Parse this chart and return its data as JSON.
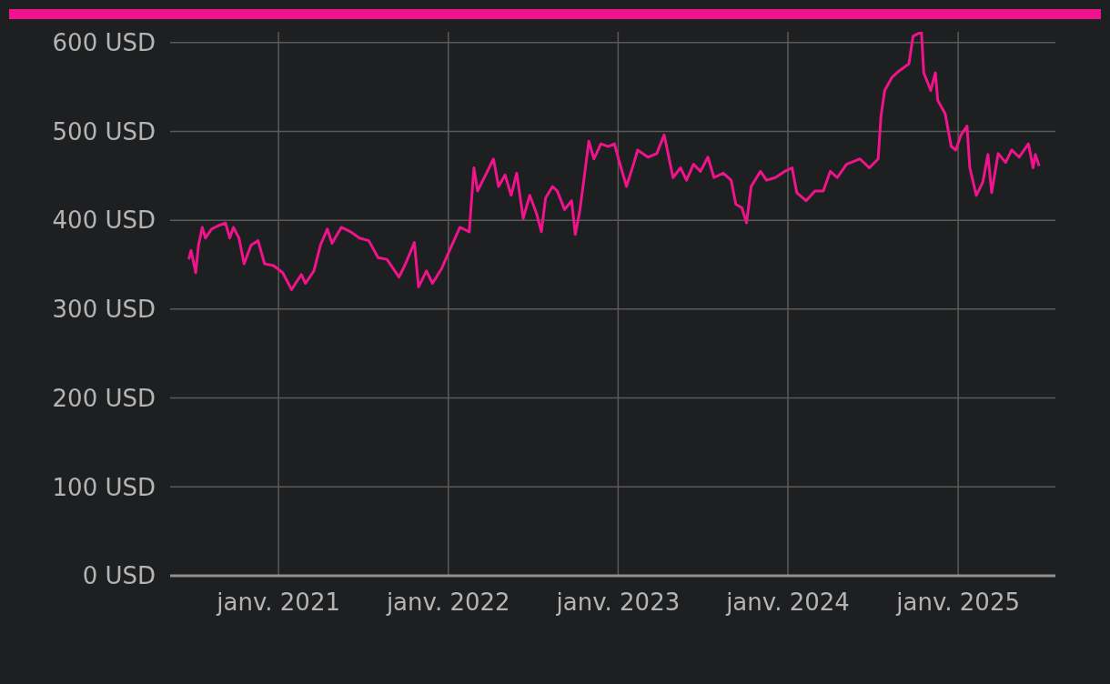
{
  "chart_data": {
    "type": "line",
    "x": [
      "2020-06-22",
      "2020-06-27",
      "2020-07-07",
      "2020-07-13",
      "2020-07-21",
      "2020-07-28",
      "2020-08-10",
      "2020-08-25",
      "2020-09-09",
      "2020-09-18",
      "2020-09-26",
      "2020-10-08",
      "2020-10-19",
      "2020-11-03",
      "2020-11-18",
      "2020-12-02",
      "2020-12-21",
      "2021-01-10",
      "2021-01-29",
      "2021-02-19",
      "2021-02-28",
      "2021-03-18",
      "2021-04-01",
      "2021-04-16",
      "2021-04-26",
      "2021-05-16",
      "2021-06-05",
      "2021-06-24",
      "2021-07-14",
      "2021-08-03",
      "2021-08-22",
      "2021-09-17",
      "2021-10-01",
      "2021-10-20",
      "2021-10-29",
      "2021-11-15",
      "2021-11-28",
      "2021-12-18",
      "2022-01-07",
      "2022-01-26",
      "2022-02-15",
      "2022-02-25",
      "2022-03-05",
      "2022-03-24",
      "2022-04-08",
      "2022-04-19",
      "2022-05-03",
      "2022-05-16",
      "2022-05-28",
      "2022-06-11",
      "2022-06-25",
      "2022-07-10",
      "2022-07-20",
      "2022-07-29",
      "2022-08-13",
      "2022-08-23",
      "2022-09-08",
      "2022-09-23",
      "2022-10-01",
      "2022-10-11",
      "2022-10-20",
      "2022-10-30",
      "2022-11-10",
      "2022-11-25",
      "2022-12-11",
      "2022-12-24",
      "2023-01-04",
      "2023-01-19",
      "2023-02-03",
      "2023-02-12",
      "2023-03-06",
      "2023-03-25",
      "2023-04-10",
      "2023-04-16",
      "2023-04-29",
      "2023-05-15",
      "2023-05-28",
      "2023-06-12",
      "2023-06-27",
      "2023-07-13",
      "2023-07-26",
      "2023-08-15",
      "2023-09-01",
      "2023-09-11",
      "2023-09-24",
      "2023-10-04",
      "2023-10-14",
      "2023-11-03",
      "2023-11-16",
      "2023-12-05",
      "2023-12-25",
      "2024-01-10",
      "2024-01-20",
      "2024-02-09",
      "2024-02-28",
      "2024-03-17",
      "2024-04-01",
      "2024-04-16",
      "2024-05-06",
      "2024-06-04",
      "2024-06-24",
      "2024-07-13",
      "2024-07-19",
      "2024-07-27",
      "2024-08-12",
      "2024-08-27",
      "2024-09-17",
      "2024-09-26",
      "2024-10-14",
      "2024-10-19",
      "2024-11-03",
      "2024-11-13",
      "2024-11-18",
      "2024-12-04",
      "2024-12-17",
      "2024-12-27",
      "2025-01-07",
      "2025-01-20",
      "2025-01-26",
      "2025-02-09",
      "2025-02-23",
      "2025-03-06",
      "2025-03-14",
      "2025-03-28",
      "2025-04-13",
      "2025-04-26",
      "2025-05-12",
      "2025-06-01",
      "2025-06-11",
      "2025-06-16",
      "2025-06-24"
    ],
    "series": [
      {
        "color": "#f0148c",
        "values": [
          356,
          366,
          341,
          372,
          392,
          380,
          390,
          394,
          397,
          380,
          392,
          380,
          351,
          372,
          377,
          351,
          349,
          341,
          322,
          339,
          329,
          343,
          372,
          390,
          374,
          392,
          387,
          380,
          377,
          358,
          356,
          336,
          351,
          375,
          325,
          343,
          329,
          346,
          370,
          392,
          387,
          459,
          433,
          453,
          469,
          438,
          451,
          428,
          453,
          402,
          428,
          407,
          387,
          425,
          438,
          433,
          412,
          422,
          384,
          412,
          448,
          489,
          469,
          486,
          483,
          486,
          465,
          438,
          463,
          479,
          471,
          475,
          496,
          481,
          448,
          459,
          445,
          463,
          455,
          471,
          448,
          453,
          445,
          418,
          414,
          397,
          438,
          455,
          445,
          448,
          455,
          459,
          431,
          422,
          433,
          433,
          455,
          448,
          463,
          469,
          459,
          469,
          517,
          546,
          561,
          568,
          576,
          607,
          612,
          566,
          546,
          566,
          535,
          520,
          483,
          479,
          496,
          506,
          459,
          428,
          443,
          474,
          431,
          475,
          465,
          479,
          471,
          486,
          459,
          474,
          461
        ]
      }
    ],
    "xlim": [
      "2020-05-13",
      "2025-07-29"
    ],
    "xticks": [
      {
        "value": "2021-01-01",
        "label": "janv. 2021"
      },
      {
        "value": "2022-01-01",
        "label": "janv. 2022"
      },
      {
        "value": "2023-01-01",
        "label": "janv. 2023"
      },
      {
        "value": "2024-01-01",
        "label": "janv. 2024"
      },
      {
        "value": "2025-01-01",
        "label": "janv. 2025"
      }
    ],
    "ylim": [
      0,
      612
    ],
    "yticks": [
      {
        "value": 0,
        "label": "0 USD"
      },
      {
        "value": 100,
        "label": "100 USD"
      },
      {
        "value": 200,
        "label": "200 USD"
      },
      {
        "value": 300,
        "label": "300 USD"
      },
      {
        "value": 400,
        "label": "400 USD"
      },
      {
        "value": 500,
        "label": "500 USD"
      },
      {
        "value": 600,
        "label": "600 USD"
      }
    ],
    "grid": true,
    "legend": false,
    "marker": "none",
    "line_style": "solid"
  }
}
